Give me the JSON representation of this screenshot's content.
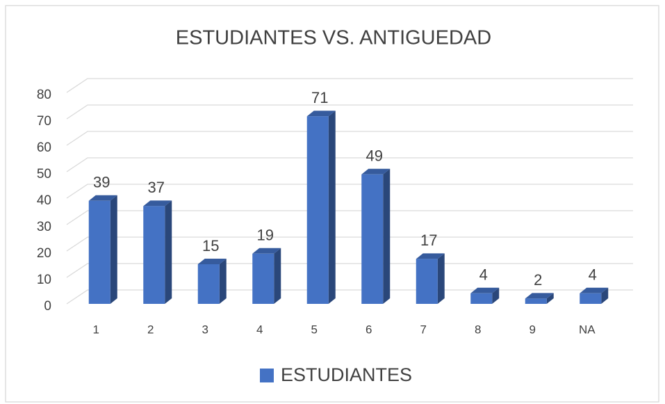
{
  "chart_data": {
    "type": "bar",
    "title": "ESTUDIANTES VS. ANTIGUEDAD",
    "categories": [
      "1",
      "2",
      "3",
      "4",
      "5",
      "6",
      "7",
      "8",
      "9",
      "NA"
    ],
    "series": [
      {
        "name": "ESTUDIANTES",
        "color": "#4472c4",
        "values": [
          39,
          37,
          15,
          19,
          71,
          49,
          17,
          4,
          2,
          4
        ]
      }
    ],
    "ylim": [
      0,
      80
    ],
    "yticks": [
      0,
      10,
      20,
      30,
      40,
      50,
      60,
      70,
      80
    ],
    "grid": true,
    "legend": "bottom"
  }
}
